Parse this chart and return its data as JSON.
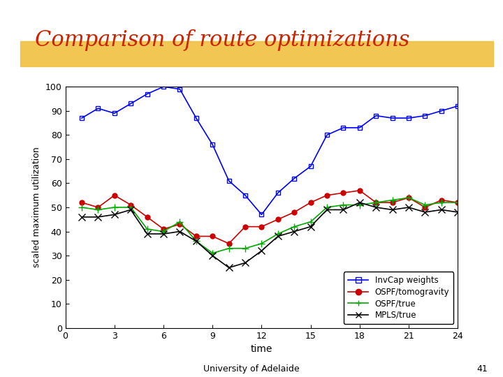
{
  "title": "Comparison of route optimizations",
  "title_color": "#cc2200",
  "title_fontsize": 22,
  "title_font": "serif",
  "xlabel": "time",
  "ylabel": "scaled maximum utilization",
  "xlim": [
    0,
    24
  ],
  "ylim": [
    0,
    100
  ],
  "xticks": [
    0,
    3,
    6,
    9,
    12,
    15,
    18,
    21,
    24
  ],
  "yticks": [
    0,
    10,
    20,
    30,
    40,
    50,
    60,
    70,
    80,
    90,
    100
  ],
  "background_color": "#ffffff",
  "highlight_color": "#f0c040",
  "footer_text": "University of Adelaide",
  "footer_number": "41",
  "series": [
    {
      "label": "InvCap weights",
      "color": "#0000ff",
      "marker": "s",
      "marker_size": 5,
      "x": [
        1,
        2,
        3,
        4,
        5,
        6,
        7,
        8,
        9,
        10,
        11,
        12,
        13,
        14,
        15,
        16,
        17,
        18,
        19,
        20,
        21,
        22,
        23,
        24
      ],
      "y": [
        87,
        91,
        89,
        93,
        97,
        100,
        99,
        87,
        76,
        61,
        55,
        47,
        56,
        62,
        67,
        80,
        83,
        83,
        88,
        87,
        87,
        88,
        90,
        92
      ]
    },
    {
      "label": "OSPF/tomogravity",
      "color": "#cc0000",
      "marker": "o",
      "marker_size": 5,
      "x": [
        1,
        2,
        3,
        4,
        5,
        6,
        7,
        8,
        9,
        10,
        11,
        12,
        13,
        14,
        15,
        16,
        17,
        18,
        19,
        20,
        21,
        22,
        23,
        24
      ],
      "y": [
        52,
        50,
        55,
        51,
        46,
        41,
        43,
        38,
        38,
        35,
        42,
        42,
        45,
        48,
        52,
        55,
        56,
        57,
        52,
        52,
        54,
        50,
        53,
        52
      ]
    },
    {
      "label": "OSPF/true",
      "color": "#00aa00",
      "marker": "+",
      "marker_size": 7,
      "x": [
        1,
        2,
        3,
        4,
        5,
        6,
        7,
        8,
        9,
        10,
        11,
        12,
        13,
        14,
        15,
        16,
        17,
        18,
        19,
        20,
        21,
        22,
        23,
        24
      ],
      "y": [
        50,
        49,
        50,
        50,
        41,
        40,
        44,
        36,
        31,
        33,
        33,
        35,
        39,
        42,
        44,
        50,
        51,
        51,
        52,
        53,
        54,
        51,
        52,
        52
      ]
    },
    {
      "label": "MPLS/true",
      "color": "#000000",
      "marker": "x",
      "marker_size": 7,
      "x": [
        1,
        2,
        3,
        4,
        5,
        6,
        7,
        8,
        9,
        10,
        11,
        12,
        13,
        14,
        15,
        16,
        17,
        18,
        19,
        20,
        21,
        22,
        23,
        24
      ],
      "y": [
        46,
        46,
        47,
        49,
        39,
        39,
        40,
        36,
        30,
        25,
        27,
        32,
        38,
        40,
        42,
        49,
        49,
        52,
        50,
        49,
        50,
        48,
        49,
        48
      ]
    }
  ]
}
